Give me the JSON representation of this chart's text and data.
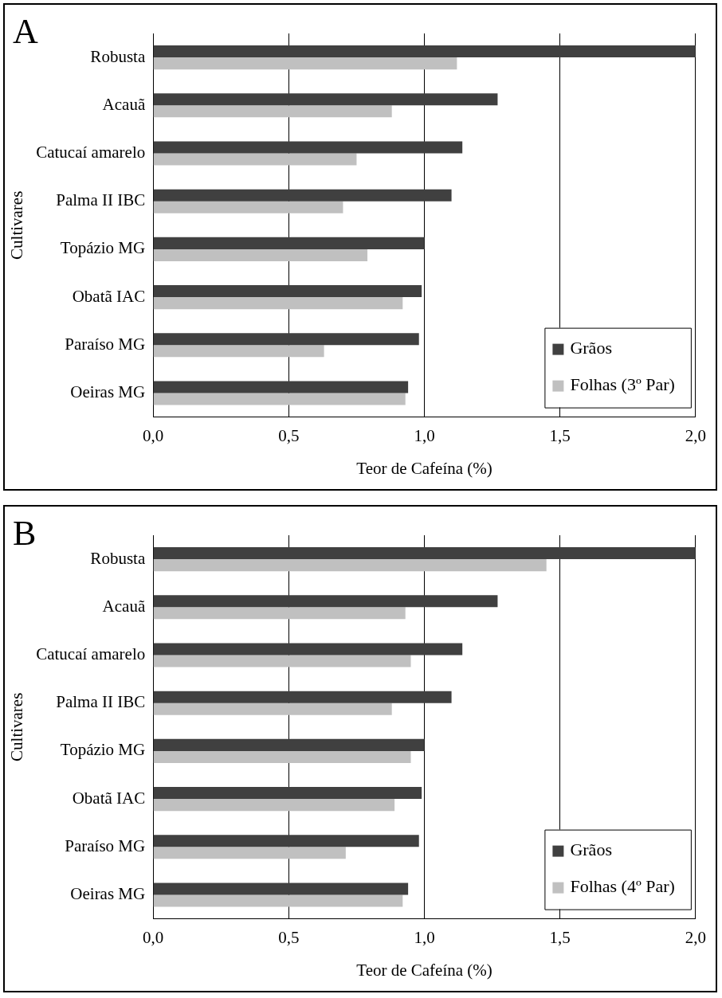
{
  "chart_data": [
    {
      "type": "bar",
      "orientation": "horizontal",
      "title": "A",
      "xlabel": "Teor de Cafeína (%)",
      "ylabel": "Cultivares",
      "categories": [
        "Robusta",
        "Acauã",
        "Catucaí amarelo",
        "Palma II IBC",
        "Topázio MG",
        "Obatã IAC",
        "Paraíso MG",
        "Oeiras MG"
      ],
      "series": [
        {
          "name": "Grãos",
          "color": "#404040",
          "values": [
            2.0,
            1.27,
            1.14,
            1.1,
            1.0,
            0.99,
            0.98,
            0.94
          ]
        },
        {
          "name": "Folhas (3º Par)",
          "color": "#c0c0c0",
          "values": [
            1.12,
            0.88,
            0.75,
            0.7,
            0.79,
            0.92,
            0.63,
            0.93
          ]
        }
      ],
      "xlim": [
        0,
        2
      ],
      "xticks": [
        {
          "value": 0,
          "label": "0,0"
        },
        {
          "value": 0.5,
          "label": "0,5"
        },
        {
          "value": 1,
          "label": "1,0"
        },
        {
          "value": 1.5,
          "label": "1,5"
        },
        {
          "value": 2,
          "label": "2,0"
        }
      ],
      "grid": "x",
      "legend": "bottom right"
    },
    {
      "type": "bar",
      "orientation": "horizontal",
      "title": "B",
      "xlabel": "Teor de Cafeína (%)",
      "ylabel": "Cultivares",
      "categories": [
        "Robusta",
        "Acauã",
        "Catucaí amarelo",
        "Palma II IBC",
        "Topázio MG",
        "Obatã IAC",
        "Paraíso MG",
        "Oeiras MG"
      ],
      "series": [
        {
          "name": "Grãos",
          "color": "#404040",
          "values": [
            2.0,
            1.27,
            1.14,
            1.1,
            1.0,
            0.99,
            0.98,
            0.94
          ]
        },
        {
          "name": "Folhas (4º Par)",
          "color": "#c0c0c0",
          "values": [
            1.45,
            0.93,
            0.95,
            0.88,
            0.95,
            0.89,
            0.71,
            0.92
          ]
        }
      ],
      "xlim": [
        0,
        2
      ],
      "xticks": [
        {
          "value": 0,
          "label": "0,0"
        },
        {
          "value": 0.5,
          "label": "0,5"
        },
        {
          "value": 1,
          "label": "1,0"
        },
        {
          "value": 1.5,
          "label": "1,5"
        },
        {
          "value": 2,
          "label": "2,0"
        }
      ],
      "grid": "x",
      "legend": "bottom right"
    }
  ]
}
